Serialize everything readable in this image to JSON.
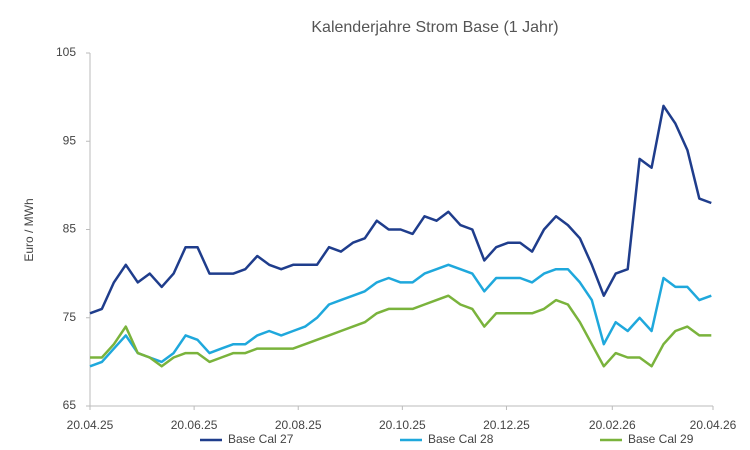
{
  "chart_data": {
    "type": "line",
    "title": "Kalenderjahre Strom Base (1 Jahr)",
    "y_label": "Euro / MWh",
    "x": [
      "20.04.25",
      "27.04.25",
      "04.05.25",
      "11.05.25",
      "18.05.25",
      "25.05.25",
      "01.06.25",
      "08.06.25",
      "15.06.25",
      "22.06.25",
      "29.06.25",
      "06.07.25",
      "13.07.25",
      "20.07.25",
      "27.07.25",
      "03.08.25",
      "10.08.25",
      "17.08.25",
      "24.08.25",
      "31.08.25",
      "07.09.25",
      "14.09.25",
      "21.09.25",
      "28.09.25",
      "05.10.25",
      "12.10.25",
      "19.10.25",
      "26.10.25",
      "02.11.25",
      "09.11.25",
      "16.11.25",
      "23.11.25",
      "30.11.25",
      "07.12.25",
      "14.12.25",
      "21.12.25",
      "28.12.25",
      "04.01.26",
      "11.01.26",
      "18.01.26",
      "25.01.26",
      "01.02.26",
      "08.02.26",
      "15.02.26",
      "22.02.26",
      "01.03.26",
      "08.03.26",
      "15.03.26",
      "22.03.26",
      "29.03.26",
      "05.04.26",
      "12.04.26",
      "19.04.26"
    ],
    "series": [
      {
        "name": "Base Cal 27",
        "color": "#1f3d8c",
        "values": [
          75.5,
          76,
          79,
          81,
          79,
          80,
          78.5,
          80,
          83,
          83,
          80,
          80,
          80,
          80.5,
          82,
          81,
          80.5,
          81,
          81,
          81,
          83,
          82.5,
          83.5,
          84,
          86,
          85,
          85,
          84.5,
          86.5,
          86,
          87,
          85.5,
          85,
          81.5,
          83,
          83.5,
          83.5,
          82.5,
          85,
          86.5,
          85.5,
          84,
          81,
          77.5,
          80,
          80.5,
          93,
          92,
          99,
          97,
          94,
          88.5,
          88
        ]
      },
      {
        "name": "Base Cal 28",
        "color": "#1fa8dc",
        "values": [
          69.5,
          70,
          71.5,
          73,
          71,
          70.5,
          70,
          71,
          73,
          72.5,
          71,
          71.5,
          72,
          72,
          73,
          73.5,
          73,
          73.5,
          74,
          75,
          76.5,
          77,
          77.5,
          78,
          79,
          79.5,
          79,
          79,
          80,
          80.5,
          81,
          80.5,
          80,
          78,
          79.5,
          79.5,
          79.5,
          79,
          80,
          80.5,
          80.5,
          79,
          77,
          72,
          74.5,
          73.5,
          75,
          73.5,
          79.5,
          78.5,
          78.5,
          77,
          77.5
        ]
      },
      {
        "name": "Base Cal 29",
        "color": "#7ab33c",
        "values": [
          70.5,
          70.5,
          72,
          74,
          71,
          70.5,
          69.5,
          70.5,
          71,
          71,
          70,
          70.5,
          71,
          71,
          71.5,
          71.5,
          71.5,
          71.5,
          72,
          72.5,
          73,
          73.5,
          74,
          74.5,
          75.5,
          76,
          76,
          76,
          76.5,
          77,
          77.5,
          76.5,
          76,
          74,
          75.5,
          75.5,
          75.5,
          75.5,
          76,
          77,
          76.5,
          74.5,
          72,
          69.5,
          71,
          70.5,
          70.5,
          69.5,
          72,
          73.5,
          74,
          73,
          73
        ]
      }
    ],
    "xlim": [
      "20.04.25",
      "20.04.26"
    ],
    "xticks": [
      "20.04.25",
      "20.06.25",
      "20.08.25",
      "20.10.25",
      "20.12.25",
      "20.02.26",
      "20.04.26"
    ],
    "ylim": [
      65,
      105
    ],
    "yticks": [
      65,
      75,
      85,
      95,
      105
    ],
    "grid": false,
    "legend": "bottom"
  }
}
